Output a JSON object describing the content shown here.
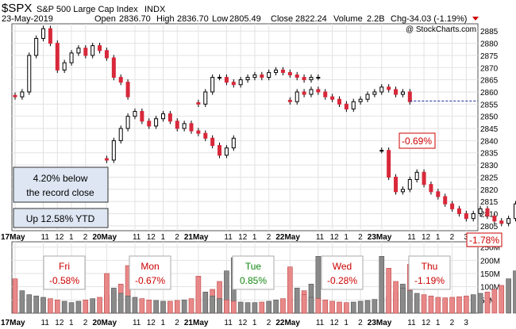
{
  "header": {
    "symbol": "$SPX",
    "name": "S&P 500 Large Cap Index",
    "exchange": "INDX",
    "date": "23-May-2019",
    "open_label": "Open",
    "open": "2836.70",
    "high_label": "High",
    "high": "2836.70",
    "low_label": "Low",
    "low": "2805.49",
    "close_label": "Close",
    "close": "2822.24",
    "volume_label": "Volume",
    "volume": "2.2B",
    "chg_label": "Chg",
    "chg": "-34.03 (-1.19%)",
    "watermark": "@ StockCharts.com"
  },
  "annotations": {
    "record_line1": "4.20% below",
    "record_line2": "the record close",
    "ytd": "Up 12.58% YTD",
    "drop_label": "-0.69%",
    "day_drop_label": "-1.78%"
  },
  "days": [
    {
      "label": "Fri",
      "pct": "-0.58%",
      "color": "#cc0000"
    },
    {
      "label": "Mon",
      "pct": "-0.67%",
      "color": "#cc0000"
    },
    {
      "label": "Tue",
      "pct": "0.85%",
      "color": "#118811"
    },
    {
      "label": "Wed",
      "pct": "-0.28%",
      "color": "#cc0000"
    },
    {
      "label": "Thu",
      "pct": "-1.19%",
      "color": "#cc0000"
    }
  ],
  "chart_data": {
    "type": "candlestick",
    "price_ticks": [
      2805,
      2810,
      2815,
      2820,
      2825,
      2830,
      2835,
      2840,
      2845,
      2850,
      2855,
      2860,
      2865,
      2870,
      2875,
      2880,
      2885
    ],
    "ylim": [
      2803,
      2888
    ],
    "volume_ticks": [
      "50M",
      "100M",
      "150M",
      "200M",
      "250M"
    ],
    "volume_ylim": [
      0,
      270
    ],
    "x_ticks": [
      {
        "t": 0,
        "label": "17May",
        "bold": true
      },
      {
        "t": 2,
        "label": "11"
      },
      {
        "t": 3,
        "label": "12"
      },
      {
        "t": 4,
        "label": "1"
      },
      {
        "t": 5,
        "label": "2"
      },
      {
        "t": 6.5,
        "label": "20May",
        "bold": true
      },
      {
        "t": 8.5,
        "label": "11"
      },
      {
        "t": 9.5,
        "label": "12"
      },
      {
        "t": 10.5,
        "label": "1"
      },
      {
        "t": 11.5,
        "label": "2"
      },
      {
        "t": 13,
        "label": "21May",
        "bold": true
      },
      {
        "t": 15,
        "label": "11"
      },
      {
        "t": 16,
        "label": "12"
      },
      {
        "t": 17,
        "label": "1"
      },
      {
        "t": 18,
        "label": "2"
      },
      {
        "t": 19.5,
        "label": "22May",
        "bold": true
      },
      {
        "t": 21.5,
        "label": "11"
      },
      {
        "t": 22.5,
        "label": "12"
      },
      {
        "t": 23.5,
        "label": "1"
      },
      {
        "t": 24.5,
        "label": "2"
      },
      {
        "t": 26,
        "label": "23May",
        "bold": true
      },
      {
        "t": 28,
        "label": "11"
      },
      {
        "t": 29,
        "label": "12"
      },
      {
        "t": 30,
        "label": "1"
      },
      {
        "t": 31,
        "label": "2"
      },
      {
        "t": 32,
        "label": "3"
      }
    ],
    "xlim": [
      0,
      32.6
    ],
    "previous_close": 2856.27,
    "last_close": 2822.24,
    "sessions": [
      {
        "t0": 0,
        "path": [
          2858,
          2860,
          2875,
          2882,
          2886,
          2880,
          2869,
          2872,
          2876,
          2878,
          2875,
          2879,
          2877,
          2874,
          2866,
          2864,
          2858
        ],
        "vol": [
          130,
          85,
          70,
          65,
          60,
          55,
          50,
          45,
          40,
          45,
          50,
          55,
          60,
          70,
          85,
          110,
          180
        ]
      },
      {
        "t0": 6.5,
        "path": [
          2832,
          2840,
          2845,
          2850,
          2852,
          2848,
          2846,
          2849,
          2851,
          2848,
          2845,
          2847,
          2844,
          2843,
          2841,
          2838,
          2834,
          2837,
          2841
        ],
        "vol": [
          150,
          95,
          75,
          65,
          60,
          55,
          50,
          48,
          45,
          45,
          48,
          50,
          55,
          60,
          70,
          90,
          120,
          160,
          210
        ]
      },
      {
        "t0": 13,
        "path": [
          2855,
          2860,
          2866,
          2866,
          2864,
          2863,
          2865,
          2866,
          2867,
          2866,
          2868,
          2869,
          2868,
          2867,
          2866,
          2865,
          2866,
          2866
        ],
        "vol": [
          140,
          80,
          65,
          55,
          50,
          45,
          42,
          40,
          40,
          42,
          45,
          50,
          55,
          60,
          70,
          85,
          110,
          215
        ]
      },
      {
        "t0": 19.5,
        "path": [
          2856,
          2860,
          2859,
          2861,
          2860,
          2858,
          2857,
          2855,
          2853,
          2856,
          2857,
          2859,
          2860,
          2862,
          2861,
          2859,
          2860,
          2856
        ],
        "vol": [
          175,
          95,
          70,
          60,
          55,
          50,
          45,
          42,
          40,
          42,
          45,
          48,
          52,
          58,
          65,
          80,
          110,
          185
        ]
      },
      {
        "t0": 26,
        "path": [
          2836,
          2825,
          2819,
          2820,
          2824,
          2827,
          2822,
          2819,
          2817,
          2814,
          2812,
          2810,
          2808,
          2810,
          2812,
          2809,
          2807,
          2806,
          2808,
          2814,
          2820,
          2822
        ],
        "vol": [
          215,
          170,
          120,
          95,
          85,
          75,
          70,
          65,
          60,
          58,
          60,
          62,
          65,
          70,
          75,
          80,
          90,
          105,
          130,
          160,
          200,
          240
        ]
      }
    ]
  }
}
